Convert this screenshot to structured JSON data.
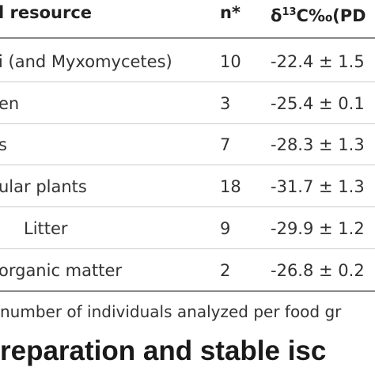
{
  "table": {
    "header": [
      "l resource",
      "n*",
      {
        "prefix": "δ",
        "sup": "13",
        "suffix": "C‰(PD"
      }
    ],
    "rows": [
      [
        "i (and Myxomycetes)",
        "10",
        "-22.4 ± 1.5"
      ],
      [
        "en",
        "3",
        "-25.4 ± 0.1"
      ],
      [
        "s",
        "7",
        "-28.3 ± 1.3"
      ],
      [
        "ular plants",
        "18",
        "-31.7 ± 1.3"
      ],
      [
        "Litter",
        "9",
        "-29.9 ± 1.2"
      ],
      [
        "organic matter",
        "2",
        "-26.8 ± 0.2"
      ]
    ],
    "footnote": "number of individuals analyzed per food gr"
  },
  "heading": "reparation and stable isc"
}
